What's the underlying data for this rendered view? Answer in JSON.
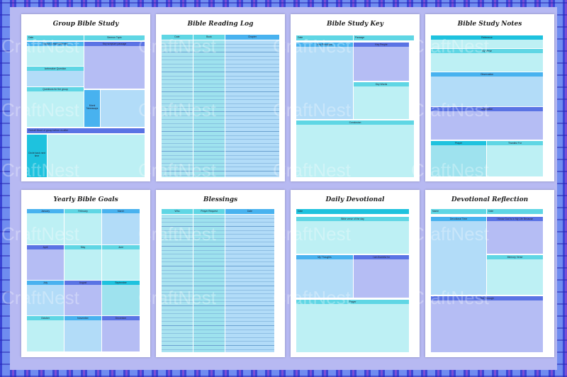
{
  "watermark": "CraftNest",
  "pages": {
    "p1": {
      "title": "Group Bible Study",
      "date": "Date",
      "sermon": "Sermon Topic",
      "todays": "Today's Lesson(title etc)",
      "keyscript": "Key scripture passage",
      "icebreaker": "Icebreaker Question",
      "questions": "Questions for the group",
      "moral": "Moral Takeaways",
      "overall": "Overall Mood of group before vs after",
      "circle": "Circle back next time"
    },
    "p2": {
      "title": "Bible Reading Log",
      "cols": [
        "Date",
        "Book",
        "Chapter"
      ]
    },
    "p3": {
      "title": "Bible Study Key",
      "date": "Date",
      "passage": "Passage",
      "principles": "Key Principles",
      "people": "Key People",
      "words": "Key Words",
      "conclusion": "Conclusion"
    },
    "p4": {
      "title": "Bible Study Notes",
      "reference": "Reference",
      "verse": "My Verse",
      "observation": "Observation",
      "application": "Application",
      "prayer": "Prayer",
      "thankful": "Thankful For"
    },
    "p5": {
      "title": "Yearly Bible Goals",
      "months": [
        "January",
        "February",
        "March",
        "April",
        "May",
        "June",
        "July",
        "August",
        "September",
        "October",
        "November",
        "December"
      ]
    },
    "p6": {
      "title": "Blessings",
      "cols": [
        "Who",
        "Prayer Request",
        "Date"
      ]
    },
    "p7": {
      "title": "Daily Devotional",
      "date": "Date",
      "verse": "Bible verse of the day",
      "thoughts": "My Thoughts",
      "thankful": "I am thankful for",
      "prayer": "Prayer"
    },
    "p8": {
      "title": "Devotional Reflection",
      "name": "Name",
      "date": "Date",
      "time": "Devotional Time",
      "know": "I Know God Is In My Life Because",
      "memory": "Memory Verse",
      "think": "The Through"
    }
  }
}
